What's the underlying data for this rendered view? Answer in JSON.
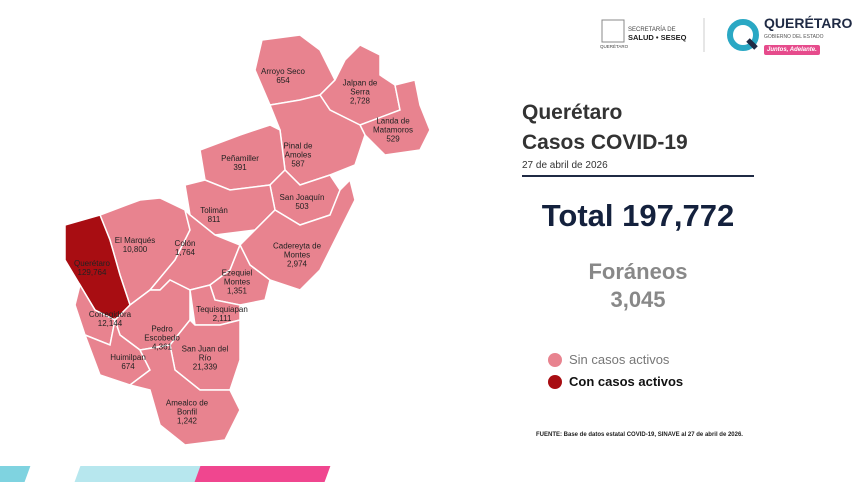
{
  "header": {
    "secretaria_line1": "SECRETARÍA DE",
    "secretaria_line2": "SALUD • SESEQ",
    "secretaria_sub": "QUERÉTARO",
    "gov_name": "QUERÉTARO",
    "gov_sub": "GOBIERNO DEL ESTADO",
    "gov_slogan": "Juntos, Adelante."
  },
  "title_line1": "Querétaro",
  "title_line2": "Casos COVID-19",
  "date": "27 de abril de 2026",
  "total": "Total 197,772",
  "foraneos_label": "Foráneos",
  "foraneos_value": "3,045",
  "legend": [
    {
      "label": "Sin casos activos",
      "color": "#e8838f"
    },
    {
      "label": "Con casos activos",
      "color": "#a80d12"
    }
  ],
  "municipalities": [
    {
      "name": "Arroyo Seco",
      "cases": "654",
      "active": false
    },
    {
      "name": "Jalpan de Serra",
      "cases": "2,728",
      "active": false
    },
    {
      "name": "Landa de Matamoros",
      "cases": "529",
      "active": false
    },
    {
      "name": "Pinal de Amoles",
      "cases": "587",
      "active": false
    },
    {
      "name": "Peñamiller",
      "cases": "391",
      "active": false
    },
    {
      "name": "San Joaquín",
      "cases": "503",
      "active": false
    },
    {
      "name": "Tolimán",
      "cases": "811",
      "active": false
    },
    {
      "name": "El Marqués",
      "cases": "10,800",
      "active": false
    },
    {
      "name": "Colón",
      "cases": "1,764",
      "active": false
    },
    {
      "name": "Cadereyta de Montes",
      "cases": "2,974",
      "active": false
    },
    {
      "name": "Querétaro",
      "cases": "129,764",
      "active": true
    },
    {
      "name": "Ezequiel Montes",
      "cases": "1,351",
      "active": false
    },
    {
      "name": "Corregidora",
      "cases": "12,144",
      "active": false
    },
    {
      "name": "Pedro Escobedo",
      "cases": "4,361",
      "active": false
    },
    {
      "name": "Tequisquiapan",
      "cases": "2,111",
      "active": false
    },
    {
      "name": "San Juan del Río",
      "cases": "21,339",
      "active": false
    },
    {
      "name": "Huimilpan",
      "cases": "674",
      "active": false
    },
    {
      "name": "Amealco de Bonfil",
      "cases": "1,242",
      "active": false
    }
  ],
  "source": "FUENTE: Base de datos estatal COVID-19, SINAVE al 27 de abril de 2026."
}
